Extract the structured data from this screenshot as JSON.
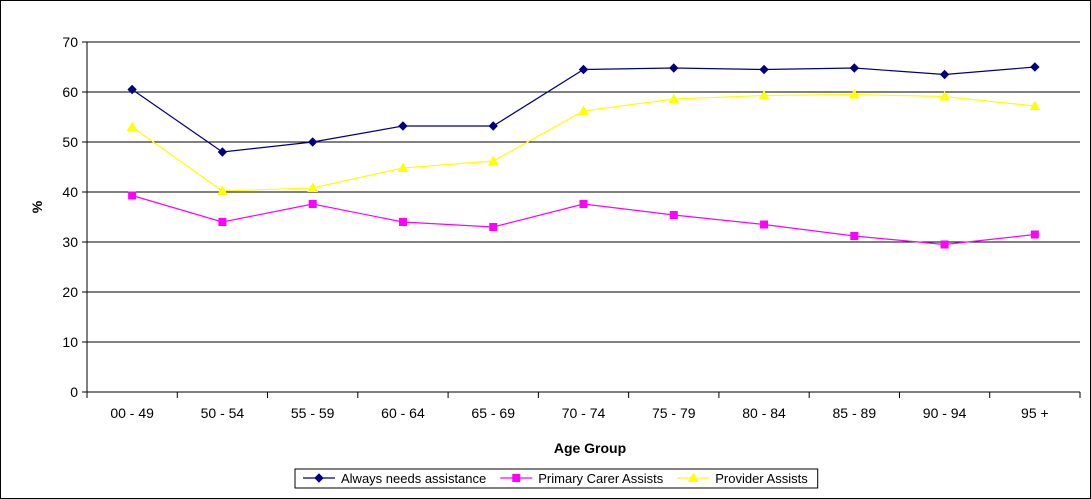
{
  "chart_data": {
    "type": "line",
    "title": "",
    "xlabel": "Age Group",
    "ylabel": "%",
    "ylim": [
      0,
      70
    ],
    "yticks": [
      0,
      10,
      20,
      30,
      40,
      50,
      60,
      70
    ],
    "grid": true,
    "legend_position": "bottom",
    "categories": [
      "00 - 49",
      "50 - 54",
      "55 - 59",
      "60 - 64",
      "65 - 69",
      "70 - 74",
      "75 - 79",
      "80 - 84",
      "85 - 89",
      "90 - 94",
      "95 +"
    ],
    "series": [
      {
        "name": "Always needs assistance",
        "color": "#000080",
        "marker": "diamond",
        "values": [
          60.5,
          48.0,
          50.0,
          53.2,
          53.2,
          64.5,
          64.8,
          64.5,
          64.8,
          63.5,
          65.0
        ]
      },
      {
        "name": "Primary Carer Assists",
        "color": "#ff00ff",
        "marker": "square",
        "values": [
          39.3,
          34.0,
          37.6,
          34.0,
          33.0,
          37.6,
          35.4,
          33.5,
          31.2,
          29.5,
          31.5
        ]
      },
      {
        "name": "Provider Assists",
        "color": "#ffff00",
        "marker": "triangle",
        "values": [
          53.0,
          40.2,
          40.8,
          44.8,
          46.2,
          56.2,
          58.6,
          59.3,
          59.5,
          59.1,
          57.2
        ]
      }
    ]
  }
}
